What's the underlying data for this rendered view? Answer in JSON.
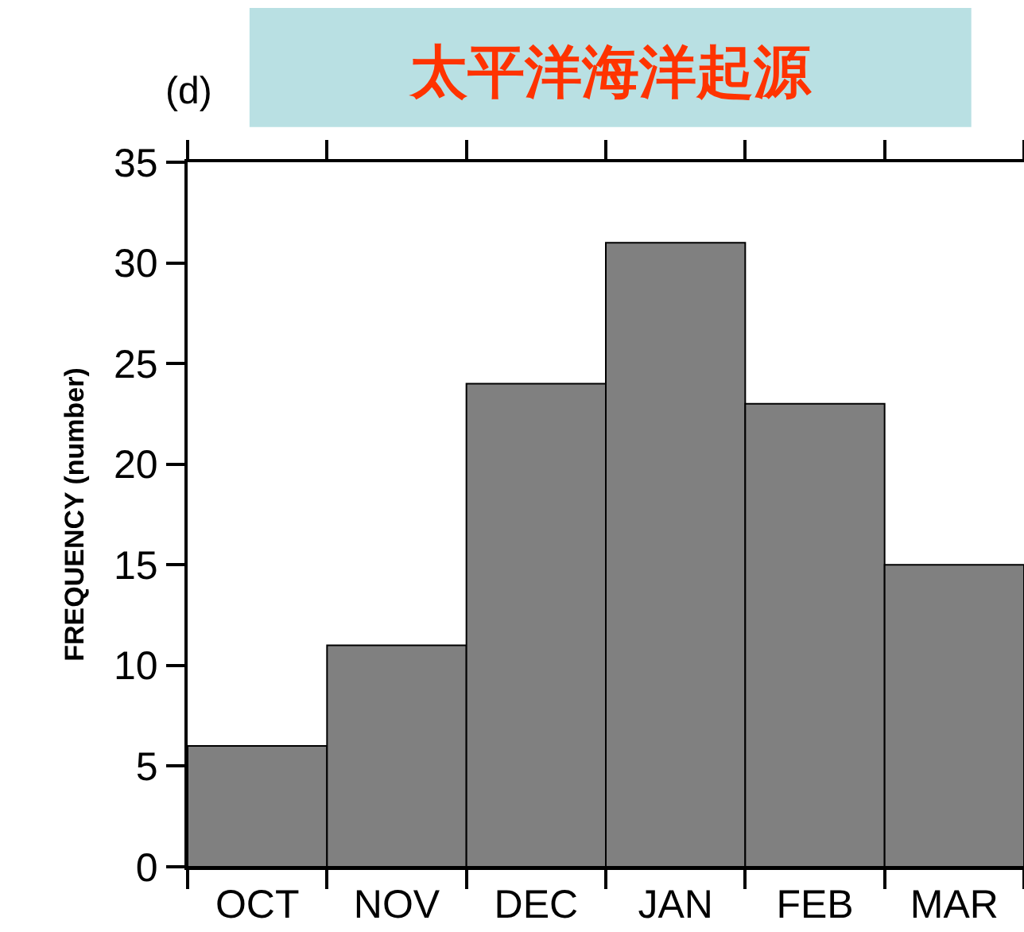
{
  "chart_data": {
    "type": "bar",
    "title": "太平洋海洋起源",
    "ylabel": "FREQUENCY (number)",
    "annotations": [
      "(d)"
    ],
    "categories": [
      "OCT",
      "NOV",
      "DEC",
      "JAN",
      "FEB",
      "MAR"
    ],
    "values": [
      6,
      11,
      24,
      31,
      23,
      15
    ],
    "color": "#808080",
    "ylim": [
      0,
      35
    ],
    "yticks": [
      0,
      5,
      10,
      15,
      20,
      25,
      30,
      35
    ],
    "grid": false
  }
}
